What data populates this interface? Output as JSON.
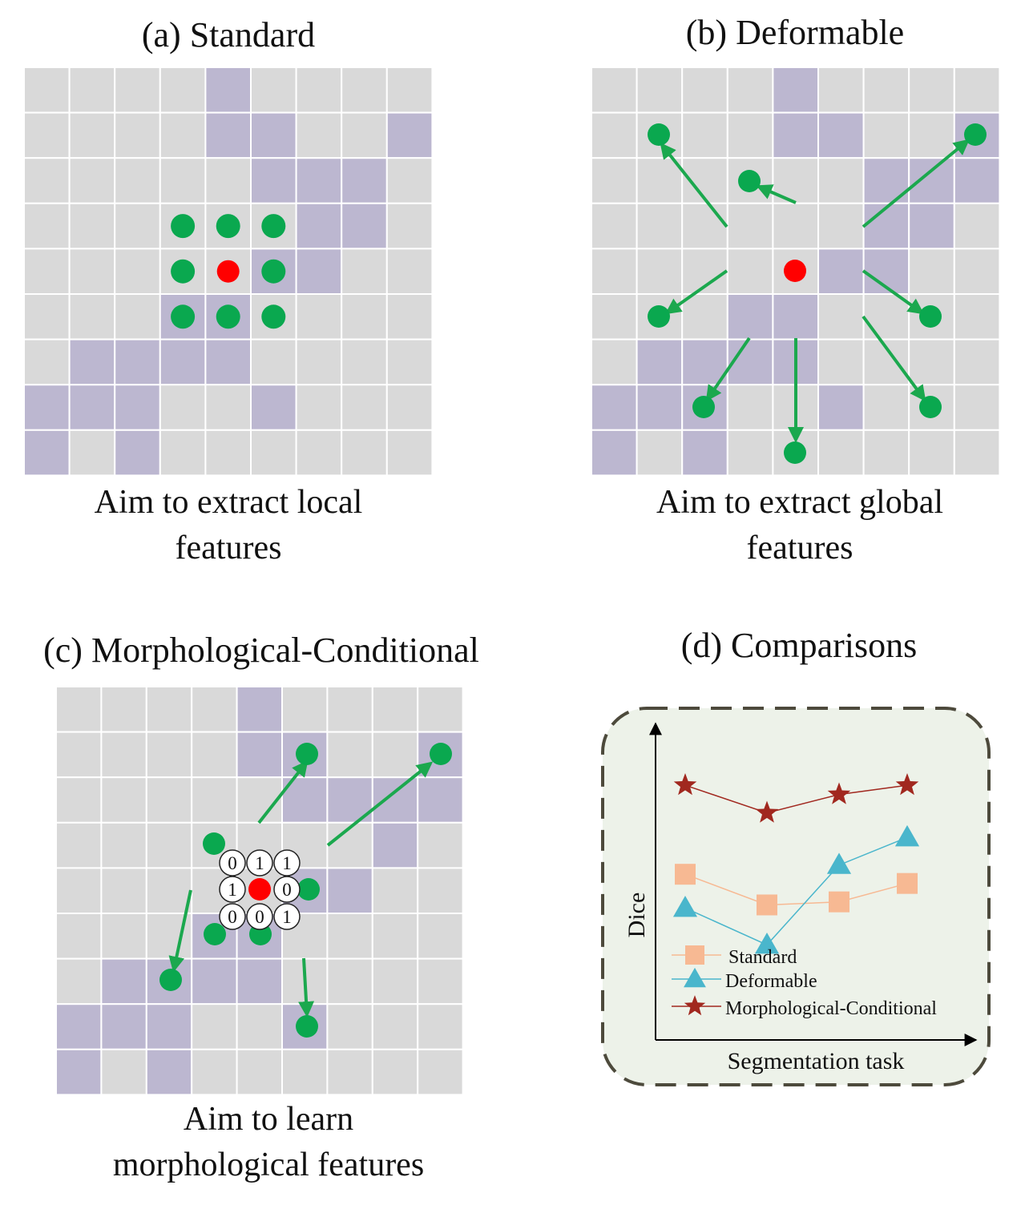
{
  "colors": {
    "cell": "#d9d9d9",
    "cell_highlight": "#bcb7d0",
    "sample_point": "#0aa84f",
    "arrow": "#1ba84e",
    "center_point": "#ff0000",
    "panel_bg": "#edf2e9",
    "panel_border": "#4d4a3c",
    "standard": "#f7b993",
    "deformable": "#4ab6cc",
    "morphological": "#a1281f"
  },
  "panels": {
    "a": {
      "title": "(a)  Standard",
      "caption_lines": [
        "Aim to extract local",
        "features"
      ],
      "highlight_cells": [
        [
          0,
          4
        ],
        [
          1,
          4
        ],
        [
          1,
          5
        ],
        [
          1,
          8
        ],
        [
          2,
          5
        ],
        [
          2,
          6
        ],
        [
          2,
          7
        ],
        [
          3,
          6
        ],
        [
          3,
          7
        ],
        [
          4,
          5
        ],
        [
          4,
          6
        ],
        [
          5,
          3
        ],
        [
          5,
          4
        ],
        [
          6,
          1
        ],
        [
          6,
          2
        ],
        [
          6,
          3
        ],
        [
          6,
          4
        ],
        [
          7,
          0
        ],
        [
          7,
          1
        ],
        [
          7,
          2
        ],
        [
          7,
          5
        ],
        [
          8,
          0
        ],
        [
          8,
          2
        ]
      ]
    },
    "b": {
      "title": "(b)  Deformable",
      "caption_lines": [
        "Aim to extract global",
        "features"
      ],
      "highlight_cells": [
        [
          0,
          4
        ],
        [
          1,
          4
        ],
        [
          1,
          5
        ],
        [
          1,
          8
        ],
        [
          2,
          6
        ],
        [
          2,
          7
        ],
        [
          2,
          8
        ],
        [
          3,
          6
        ],
        [
          3,
          7
        ],
        [
          4,
          5
        ],
        [
          4,
          6
        ],
        [
          5,
          3
        ],
        [
          5,
          4
        ],
        [
          6,
          1
        ],
        [
          6,
          2
        ],
        [
          6,
          3
        ],
        [
          6,
          4
        ],
        [
          7,
          0
        ],
        [
          7,
          1
        ],
        [
          7,
          2
        ],
        [
          7,
          5
        ],
        [
          8,
          0
        ],
        [
          8,
          2
        ]
      ]
    },
    "c": {
      "title": "(c)  Morphological-Conditional",
      "caption_lines": [
        "Aim to learn",
        "morphological features"
      ],
      "highlight_cells": [
        [
          0,
          4
        ],
        [
          1,
          4
        ],
        [
          1,
          5
        ],
        [
          1,
          8
        ],
        [
          2,
          5
        ],
        [
          2,
          6
        ],
        [
          2,
          7
        ],
        [
          2,
          8
        ],
        [
          3,
          7
        ],
        [
          4,
          5
        ],
        [
          4,
          6
        ],
        [
          5,
          3
        ],
        [
          5,
          4
        ],
        [
          6,
          1
        ],
        [
          6,
          2
        ],
        [
          6,
          3
        ],
        [
          6,
          4
        ],
        [
          7,
          0
        ],
        [
          7,
          1
        ],
        [
          7,
          2
        ],
        [
          7,
          5
        ],
        [
          8,
          0
        ],
        [
          8,
          2
        ]
      ],
      "kernel_bits": [
        [
          "0",
          "1",
          "1"
        ],
        [
          "1",
          "",
          "0"
        ],
        [
          "0",
          "0",
          "1"
        ]
      ]
    },
    "d": {
      "title": "(d)  Comparisons"
    }
  },
  "chart_data": {
    "type": "line",
    "xlabel": "Segmentation task",
    "ylabel": "Dice",
    "categories": [
      "",
      "",
      "",
      ""
    ],
    "ylim": [
      0,
      1
    ],
    "grid": false,
    "legend_position": "bottom-left",
    "series": [
      {
        "name": "Standard",
        "marker": "square",
        "color_key": "standard",
        "values": [
          0.54,
          0.44,
          0.45,
          0.51
        ]
      },
      {
        "name": "Deformable",
        "marker": "triangle",
        "color_key": "deformable",
        "values": [
          0.43,
          0.31,
          0.57,
          0.66
        ]
      },
      {
        "name": "Morphological-Conditional",
        "marker": "star",
        "color_key": "morphological",
        "values": [
          0.83,
          0.74,
          0.8,
          0.83
        ]
      }
    ]
  }
}
